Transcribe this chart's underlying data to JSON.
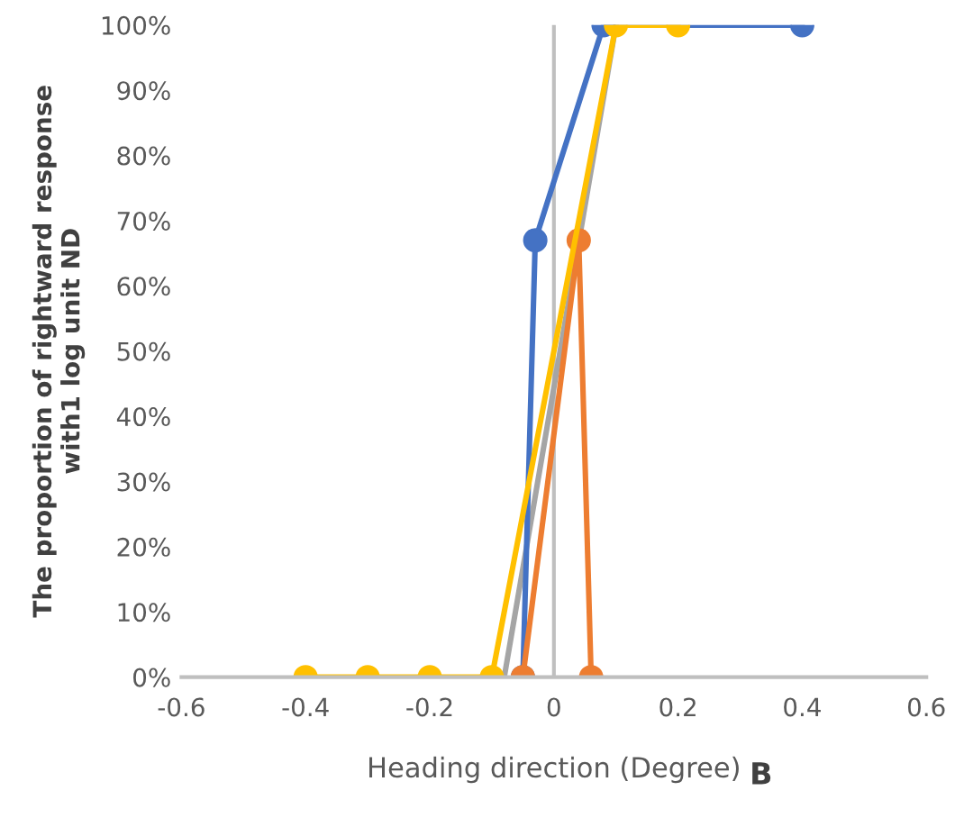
{
  "chart_data": {
    "type": "line",
    "xlabel": "Heading direction (Degree)",
    "ylabel": "The proportion of rightward response\nwith1 log unit ND",
    "annotations": [
      "B"
    ],
    "xlim": [
      -0.6,
      0.6
    ],
    "xticks": [
      -0.6,
      -0.4,
      -0.2,
      0,
      0.2,
      0.4,
      0.6
    ],
    "ylim": [
      0,
      100
    ],
    "yticks": [
      {
        "value": 0,
        "label": "0%"
      },
      {
        "value": 10,
        "label": "10%"
      },
      {
        "value": 20,
        "label": "20%"
      },
      {
        "value": 30,
        "label": "30%"
      },
      {
        "value": 40,
        "label": "40%"
      },
      {
        "value": 50,
        "label": "50%"
      },
      {
        "value": 60,
        "label": "60%"
      },
      {
        "value": 70,
        "label": "70%"
      },
      {
        "value": 80,
        "label": "80%"
      },
      {
        "value": 90,
        "label": "90%"
      },
      {
        "value": 100,
        "label": "100%"
      }
    ],
    "grid": false,
    "ref_lines": [
      {
        "axis": "x",
        "value": 0,
        "color": "#bfbfbf"
      }
    ],
    "legend": false,
    "marker": "circle",
    "series": [
      {
        "color": "#a5a5a5",
        "x": [
          -0.08,
          0.1
        ],
        "values": [
          0,
          100
        ],
        "marker": "none"
      },
      {
        "color": "#4472c4",
        "x": [
          -0.05,
          -0.03,
          0.08,
          0.4
        ],
        "values": [
          0,
          67,
          100,
          100
        ]
      },
      {
        "color": "#ed7d31",
        "x": [
          -0.05,
          0.04,
          0.06
        ],
        "values": [
          0,
          67,
          0
        ]
      },
      {
        "color": "#ffc000",
        "x": [
          -0.4,
          -0.3,
          -0.2,
          -0.1,
          0.1,
          0.2
        ],
        "values": [
          0,
          0,
          0,
          0,
          100,
          100
        ]
      }
    ]
  }
}
